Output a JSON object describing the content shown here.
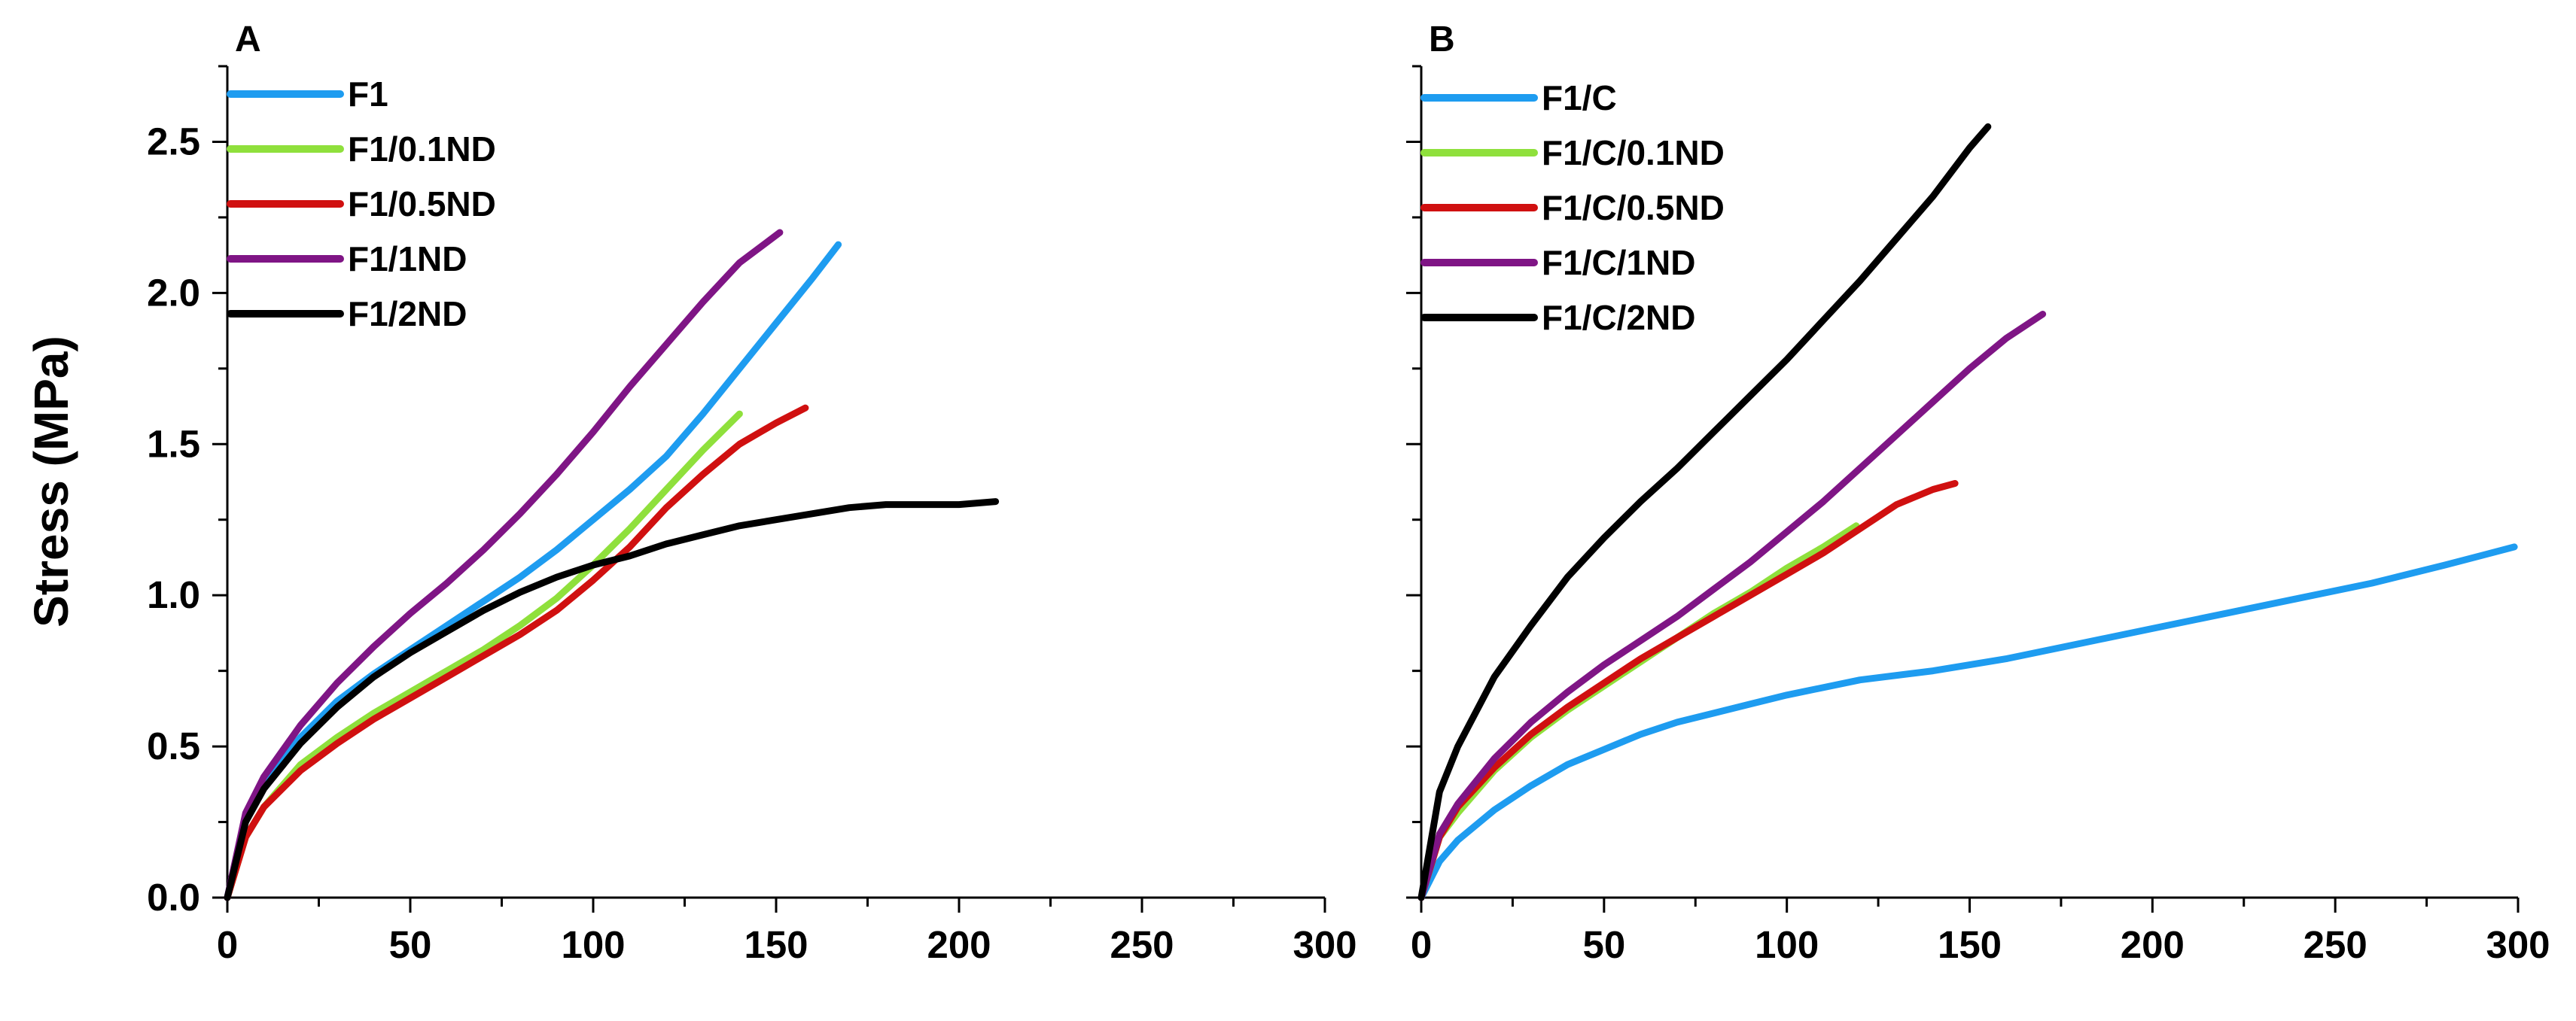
{
  "chart_data": [
    {
      "type": "line",
      "panel_label": "A",
      "xlabel": "",
      "ylabel": "Stress (MPa)",
      "xlim": [
        0,
        300
      ],
      "ylim": [
        0,
        2.75
      ],
      "x_ticks": [
        "0",
        "50",
        "100",
        "150",
        "200",
        "250",
        "300"
      ],
      "y_ticks": [
        "0.0",
        "0.5",
        "1.0",
        "1.5",
        "2.0",
        "2.5"
      ],
      "legend_position": "top-left",
      "series": [
        {
          "name": "F1",
          "color": "#1E9CF0",
          "points": [
            [
              0,
              0
            ],
            [
              5,
              0.27
            ],
            [
              10,
              0.38
            ],
            [
              20,
              0.53
            ],
            [
              30,
              0.65
            ],
            [
              40,
              0.74
            ],
            [
              50,
              0.82
            ],
            [
              60,
              0.9
            ],
            [
              70,
              0.98
            ],
            [
              80,
              1.06
            ],
            [
              90,
              1.15
            ],
            [
              100,
              1.25
            ],
            [
              110,
              1.35
            ],
            [
              120,
              1.46
            ],
            [
              130,
              1.6
            ],
            [
              140,
              1.75
            ],
            [
              150,
              1.9
            ],
            [
              160,
              2.05
            ],
            [
              167,
              2.16
            ]
          ]
        },
        {
          "name": "F1/0.1ND",
          "color": "#8FE03C",
          "points": [
            [
              0,
              0
            ],
            [
              5,
              0.2
            ],
            [
              10,
              0.3
            ],
            [
              20,
              0.44
            ],
            [
              30,
              0.53
            ],
            [
              40,
              0.61
            ],
            [
              50,
              0.68
            ],
            [
              60,
              0.75
            ],
            [
              70,
              0.82
            ],
            [
              80,
              0.9
            ],
            [
              90,
              0.99
            ],
            [
              100,
              1.1
            ],
            [
              110,
              1.22
            ],
            [
              120,
              1.35
            ],
            [
              130,
              1.48
            ],
            [
              140,
              1.6
            ]
          ]
        },
        {
          "name": "F1/0.5ND",
          "color": "#D01010",
          "points": [
            [
              0,
              0
            ],
            [
              5,
              0.2
            ],
            [
              10,
              0.3
            ],
            [
              20,
              0.42
            ],
            [
              30,
              0.51
            ],
            [
              40,
              0.59
            ],
            [
              50,
              0.66
            ],
            [
              60,
              0.73
            ],
            [
              70,
              0.8
            ],
            [
              80,
              0.87
            ],
            [
              90,
              0.95
            ],
            [
              100,
              1.05
            ],
            [
              110,
              1.16
            ],
            [
              120,
              1.29
            ],
            [
              130,
              1.4
            ],
            [
              140,
              1.5
            ],
            [
              150,
              1.57
            ],
            [
              158,
              1.62
            ]
          ]
        },
        {
          "name": "F1/1ND",
          "color": "#7F1585",
          "points": [
            [
              0,
              0
            ],
            [
              5,
              0.28
            ],
            [
              10,
              0.4
            ],
            [
              20,
              0.57
            ],
            [
              30,
              0.71
            ],
            [
              40,
              0.83
            ],
            [
              50,
              0.94
            ],
            [
              60,
              1.04
            ],
            [
              70,
              1.15
            ],
            [
              80,
              1.27
            ],
            [
              90,
              1.4
            ],
            [
              100,
              1.54
            ],
            [
              110,
              1.69
            ],
            [
              120,
              1.83
            ],
            [
              130,
              1.97
            ],
            [
              140,
              2.1
            ],
            [
              151,
              2.2
            ]
          ]
        },
        {
          "name": "F1/2ND",
          "color": "#000000",
          "points": [
            [
              0,
              0
            ],
            [
              5,
              0.25
            ],
            [
              10,
              0.36
            ],
            [
              20,
              0.51
            ],
            [
              30,
              0.63
            ],
            [
              40,
              0.73
            ],
            [
              50,
              0.81
            ],
            [
              60,
              0.88
            ],
            [
              70,
              0.95
            ],
            [
              80,
              1.01
            ],
            [
              90,
              1.06
            ],
            [
              100,
              1.1
            ],
            [
              110,
              1.13
            ],
            [
              120,
              1.17
            ],
            [
              130,
              1.2
            ],
            [
              140,
              1.23
            ],
            [
              150,
              1.25
            ],
            [
              160,
              1.27
            ],
            [
              170,
              1.29
            ],
            [
              180,
              1.3
            ],
            [
              190,
              1.3
            ],
            [
              200,
              1.3
            ],
            [
              210,
              1.31
            ]
          ]
        }
      ]
    },
    {
      "type": "line",
      "panel_label": "B",
      "xlabel": "",
      "ylabel": "",
      "xlim": [
        0,
        300
      ],
      "ylim": [
        0,
        2.75
      ],
      "x_ticks": [
        "0",
        "50",
        "100",
        "150",
        "200",
        "250",
        "300"
      ],
      "y_ticks": [],
      "legend_position": "top-left",
      "series": [
        {
          "name": "F1/C",
          "color": "#1E9CF0",
          "points": [
            [
              0,
              0
            ],
            [
              5,
              0.12
            ],
            [
              10,
              0.19
            ],
            [
              20,
              0.29
            ],
            [
              30,
              0.37
            ],
            [
              40,
              0.44
            ],
            [
              50,
              0.49
            ],
            [
              60,
              0.54
            ],
            [
              70,
              0.58
            ],
            [
              80,
              0.61
            ],
            [
              90,
              0.64
            ],
            [
              100,
              0.67
            ],
            [
              120,
              0.72
            ],
            [
              140,
              0.75
            ],
            [
              160,
              0.79
            ],
            [
              180,
              0.84
            ],
            [
              200,
              0.89
            ],
            [
              220,
              0.94
            ],
            [
              240,
              0.99
            ],
            [
              260,
              1.04
            ],
            [
              280,
              1.1
            ],
            [
              299,
              1.16
            ]
          ]
        },
        {
          "name": "F1/C/0.1ND",
          "color": "#8FE03C",
          "points": [
            [
              0,
              0
            ],
            [
              5,
              0.2
            ],
            [
              10,
              0.28
            ],
            [
              20,
              0.42
            ],
            [
              30,
              0.53
            ],
            [
              40,
              0.62
            ],
            [
              50,
              0.7
            ],
            [
              60,
              0.78
            ],
            [
              70,
              0.86
            ],
            [
              80,
              0.94
            ],
            [
              90,
              1.01
            ],
            [
              100,
              1.09
            ],
            [
              110,
              1.16
            ],
            [
              119,
              1.23
            ]
          ]
        },
        {
          "name": "F1/C/0.5ND",
          "color": "#D01010",
          "points": [
            [
              0,
              0
            ],
            [
              5,
              0.2
            ],
            [
              10,
              0.3
            ],
            [
              20,
              0.43
            ],
            [
              30,
              0.54
            ],
            [
              40,
              0.63
            ],
            [
              50,
              0.71
            ],
            [
              60,
              0.79
            ],
            [
              70,
              0.86
            ],
            [
              80,
              0.93
            ],
            [
              90,
              1.0
            ],
            [
              100,
              1.07
            ],
            [
              110,
              1.14
            ],
            [
              120,
              1.22
            ],
            [
              130,
              1.3
            ],
            [
              140,
              1.35
            ],
            [
              146,
              1.37
            ]
          ]
        },
        {
          "name": "F1/C/1ND",
          "color": "#7F1585",
          "points": [
            [
              0,
              0
            ],
            [
              5,
              0.21
            ],
            [
              10,
              0.31
            ],
            [
              20,
              0.46
            ],
            [
              30,
              0.58
            ],
            [
              40,
              0.68
            ],
            [
              50,
              0.77
            ],
            [
              60,
              0.85
            ],
            [
              70,
              0.93
            ],
            [
              80,
              1.02
            ],
            [
              90,
              1.11
            ],
            [
              100,
              1.21
            ],
            [
              110,
              1.31
            ],
            [
              120,
              1.42
            ],
            [
              130,
              1.53
            ],
            [
              140,
              1.64
            ],
            [
              150,
              1.75
            ],
            [
              160,
              1.85
            ],
            [
              170,
              1.93
            ]
          ]
        },
        {
          "name": "F1/C/2ND",
          "color": "#000000",
          "points": [
            [
              0,
              0
            ],
            [
              5,
              0.35
            ],
            [
              10,
              0.5
            ],
            [
              20,
              0.73
            ],
            [
              30,
              0.9
            ],
            [
              40,
              1.06
            ],
            [
              50,
              1.19
            ],
            [
              60,
              1.31
            ],
            [
              70,
              1.42
            ],
            [
              80,
              1.54
            ],
            [
              90,
              1.66
            ],
            [
              100,
              1.78
            ],
            [
              110,
              1.91
            ],
            [
              120,
              2.04
            ],
            [
              130,
              2.18
            ],
            [
              140,
              2.32
            ],
            [
              150,
              2.48
            ],
            [
              155,
              2.55
            ]
          ]
        }
      ]
    }
  ]
}
